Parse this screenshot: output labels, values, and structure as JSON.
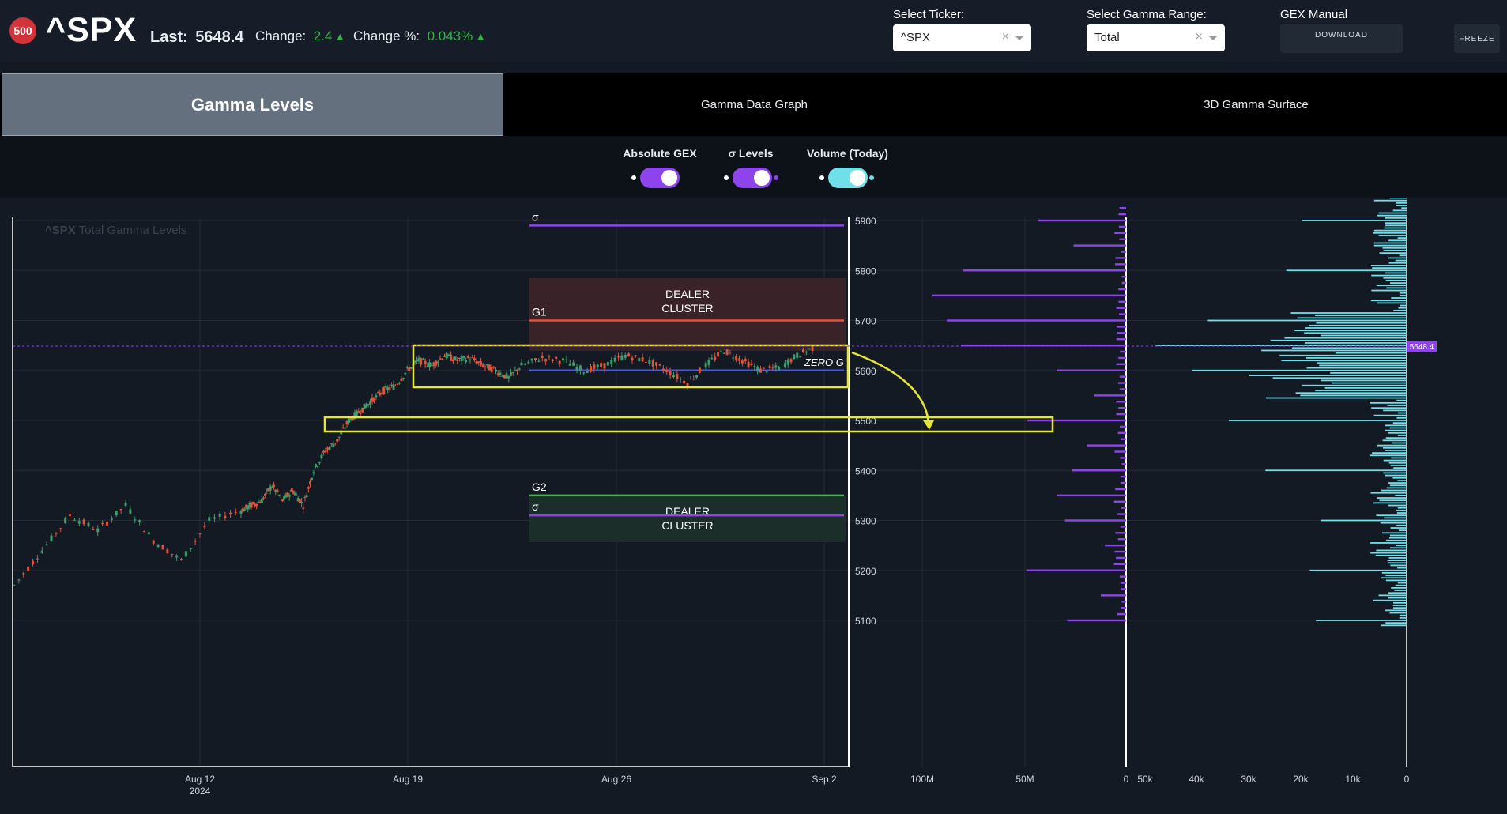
{
  "header": {
    "logo_badge": "500",
    "ticker": "^SPX",
    "last_label": "Last:",
    "last_value": "5648.4",
    "change_label": "Change:",
    "change_value": "2.4",
    "change_pct_label": "Change %:",
    "change_pct_value": "0.043%",
    "select_ticker_label": "Select Ticker:",
    "select_ticker_value": "^SPX",
    "select_range_label": "Select Gamma Range:",
    "select_range_value": "Total",
    "gex_manual_label": "GEX Manual",
    "download_label": "DOWNLOAD",
    "freeze_label": "FREEZE"
  },
  "tabs": [
    {
      "label": "Gamma Levels",
      "active": true
    },
    {
      "label": "Gamma Data Graph",
      "active": false
    },
    {
      "label": "3D Gamma Surface",
      "active": false
    }
  ],
  "toggles": [
    {
      "label": "Absolute GEX",
      "on": true,
      "color": "#8e44ec"
    },
    {
      "label": "σ Levels",
      "on": true,
      "color": "#8e44ec"
    },
    {
      "label": "Volume (Today)",
      "on": true,
      "color": "#6fe0ea"
    }
  ],
  "chart": {
    "title_ticker": "^SPX",
    "title_rest": "Total Gamma Levels",
    "price_axis": [
      "5900",
      "5800",
      "5700",
      "5600",
      "5500",
      "5400",
      "5300",
      "5200",
      "5100"
    ],
    "date_axis": [
      "Aug 12",
      "Aug 19",
      "Aug 26",
      "Sep 2"
    ],
    "date_year": "2024",
    "gex_axis": [
      "100M",
      "50M",
      "0"
    ],
    "vol_axis": [
      "50k",
      "40k",
      "30k",
      "20k",
      "10k",
      "0"
    ],
    "current_price_tag": "5648.4",
    "labels": {
      "sigma_top": "σ",
      "g1": "G1",
      "dealer_top_1": "DEALER",
      "dealer_top_2": "CLUSTER",
      "zero_g": "ZERO G",
      "g2": "G2",
      "sigma_bottom": "σ",
      "dealer_bottom_1": "DEALER",
      "dealer_bottom_2": "CLUSTER"
    },
    "colors": {
      "up_candle": "#3f9c6b",
      "down_candle": "#e0533b",
      "sigma": "#8e44ec",
      "g1": "#e0533b",
      "g2": "#3fb54a",
      "zero_g": "#4a56e8",
      "gex_bars": "#8e44ec",
      "vol_bars": "#6fe0ea",
      "highlight": "#e6e63a"
    }
  },
  "chart_data": {
    "type": "line",
    "title": "^SPX Total Gamma Levels",
    "y_range": [
      5080,
      5980
    ],
    "x_labels": [
      "Aug 12",
      "Aug 19",
      "Aug 26",
      "Sep 2"
    ],
    "price_path": [
      5170,
      5240,
      5310,
      5280,
      5330,
      5260,
      5220,
      5300,
      5320,
      5330,
      5340,
      5370,
      5340,
      5360,
      5330,
      5400,
      5440,
      5460,
      5500,
      5520,
      5540,
      5560,
      5570,
      5600,
      5620,
      5610,
      5630,
      5620,
      5625,
      5610,
      5600,
      5585,
      5610,
      5625,
      5620,
      5600,
      5610,
      5630,
      5620,
      5600,
      5575,
      5610,
      5640,
      5620,
      5600,
      5605,
      5630,
      5648
    ],
    "levels": {
      "sigma_upper": 5890,
      "g1": 5700,
      "zero_g": 5600,
      "g2": 5350,
      "sigma_lower": 5310
    },
    "gex_scale_max": "100M",
    "volume_scale_max": "50k",
    "last_price": 5648.4
  }
}
